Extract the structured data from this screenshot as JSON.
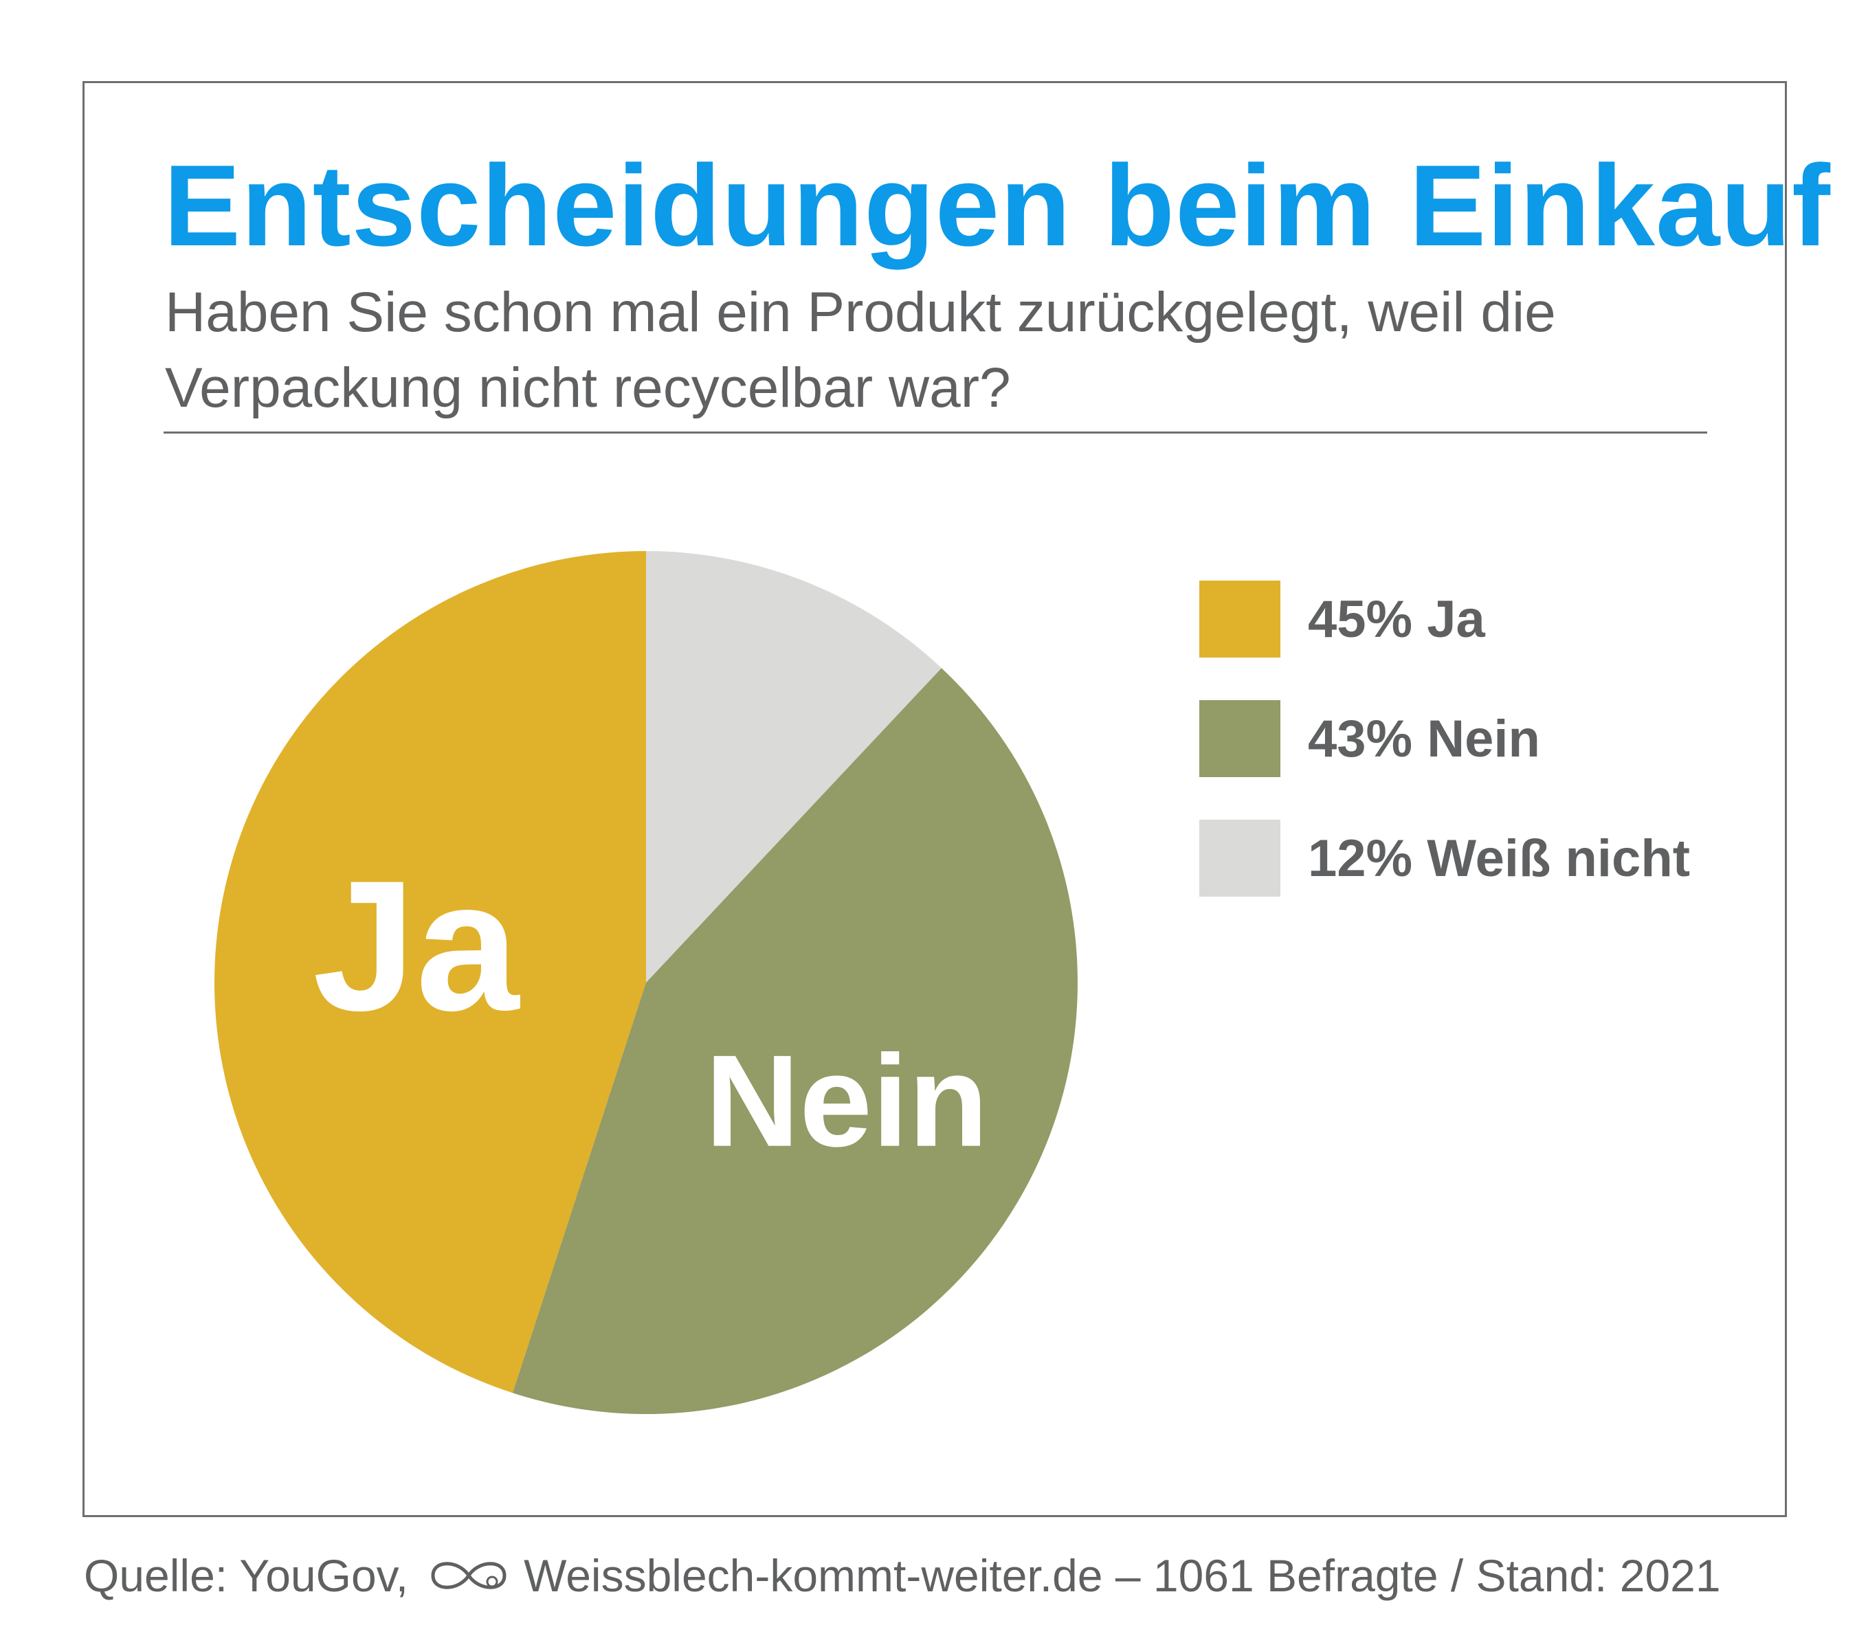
{
  "chart_data": {
    "type": "pie",
    "title": "Entscheidungen beim Einkauf",
    "subtitle": "Haben Sie schon mal ein Produkt zurückgelegt, weil die Verpackung nicht recycelbar war?",
    "slices": [
      {
        "name": "Ja",
        "value": 45,
        "color": "#e0b12b",
        "inner_label": "Ja",
        "legend_label": "45% Ja"
      },
      {
        "name": "Nein",
        "value": 43,
        "color": "#939b66",
        "inner_label": "Nein",
        "legend_label": "43% Nein"
      },
      {
        "name": "Weiß nicht",
        "value": 12,
        "color": "#dadad9",
        "inner_label": "",
        "legend_label": "12% Weiß nicht"
      }
    ],
    "legend_position": "right"
  },
  "footer": {
    "source_prefix": "Quelle: YouGov,",
    "source_suffix": "Weissblech-kommt-weiter.de – 1061 Befragte / Stand: 2021",
    "logo_icon": "infinity-logo-icon"
  }
}
